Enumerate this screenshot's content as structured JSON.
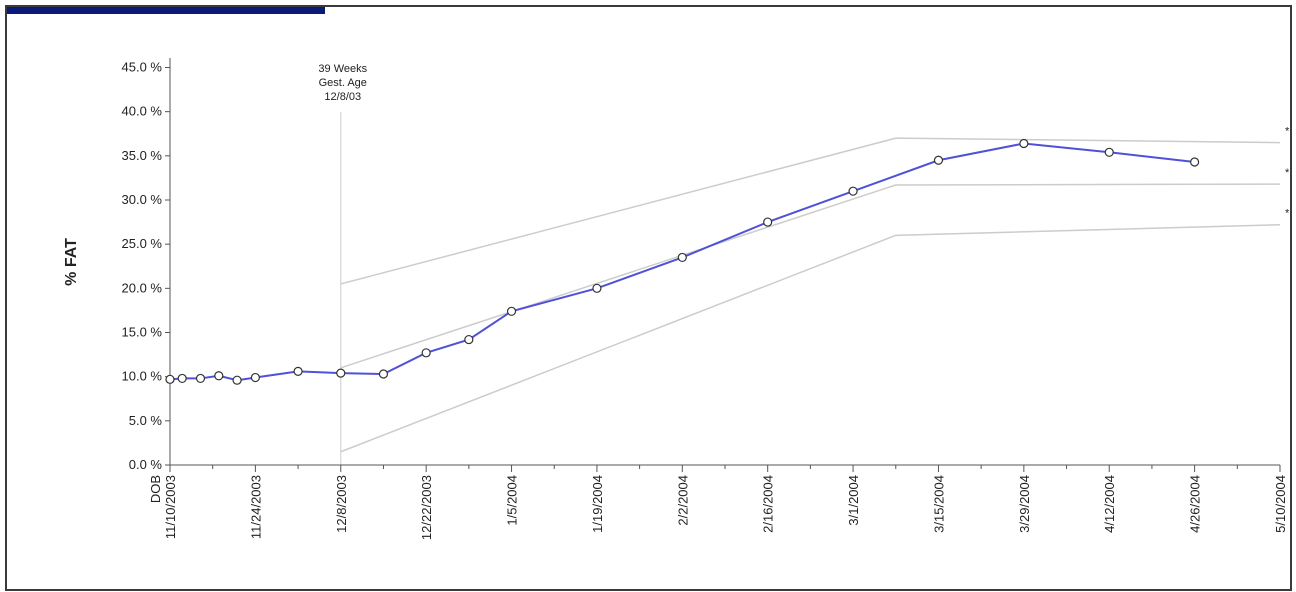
{
  "colors": {
    "header": "#0b1a78",
    "series": "#5050d8",
    "reference": "#cccccc",
    "axis": "#555555"
  },
  "chart_data": {
    "type": "line",
    "ylabel": "% FAT",
    "ylim": [
      0,
      46
    ],
    "y_ticks": [
      {
        "v": 0,
        "label": "0.0 %"
      },
      {
        "v": 5,
        "label": "5.0 %"
      },
      {
        "v": 10,
        "label": "10.0 %"
      },
      {
        "v": 15,
        "label": "15.0 %"
      },
      {
        "v": 20,
        "label": "20.0 %"
      },
      {
        "v": 25,
        "label": "25.0 %"
      },
      {
        "v": 30,
        "label": "30.0 %"
      },
      {
        "v": 35,
        "label": "35.0 %"
      },
      {
        "v": 40,
        "label": "40.0 %"
      },
      {
        "v": 45,
        "label": "45.0 %"
      }
    ],
    "x_ticks": [
      {
        "date": "2003-11-10",
        "label": "11/10/2003",
        "label2": "DOB"
      },
      {
        "date": "2003-11-24",
        "label": "11/24/2003"
      },
      {
        "date": "2003-12-08",
        "label": "12/8/2003"
      },
      {
        "date": "2003-12-22",
        "label": "12/22/2003"
      },
      {
        "date": "2004-01-05",
        "label": "1/5/2004"
      },
      {
        "date": "2004-01-19",
        "label": "1/19/2004"
      },
      {
        "date": "2004-02-02",
        "label": "2/2/2004"
      },
      {
        "date": "2004-02-16",
        "label": "2/16/2004"
      },
      {
        "date": "2004-03-01",
        "label": "3/1/2004"
      },
      {
        "date": "2004-03-15",
        "label": "3/15/2004"
      },
      {
        "date": "2004-03-29",
        "label": "3/29/2004"
      },
      {
        "date": "2004-04-12",
        "label": "4/12/2004"
      },
      {
        "date": "2004-04-26",
        "label": "4/26/2004"
      },
      {
        "date": "2004-05-10",
        "label": "5/10/2004"
      }
    ],
    "xlim": [
      "2003-11-10",
      "2004-05-10"
    ],
    "series": [
      {
        "points": [
          {
            "x": "2003-11-10",
            "y": 9.7
          },
          {
            "x": "2003-11-12",
            "y": 9.8
          },
          {
            "x": "2003-11-15",
            "y": 9.8
          },
          {
            "x": "2003-11-18",
            "y": 10.1
          },
          {
            "x": "2003-11-21",
            "y": 9.6
          },
          {
            "x": "2003-11-24",
            "y": 9.9
          },
          {
            "x": "2003-12-01",
            "y": 10.6
          },
          {
            "x": "2003-12-08",
            "y": 10.4
          },
          {
            "x": "2003-12-15",
            "y": 10.3
          },
          {
            "x": "2003-12-22",
            "y": 12.7
          },
          {
            "x": "2003-12-29",
            "y": 14.2
          },
          {
            "x": "2004-01-05",
            "y": 17.4
          },
          {
            "x": "2004-01-19",
            "y": 20.0
          },
          {
            "x": "2004-02-02",
            "y": 23.5
          },
          {
            "x": "2004-02-16",
            "y": 27.5
          },
          {
            "x": "2004-03-01",
            "y": 31.0
          },
          {
            "x": "2004-03-15",
            "y": 34.5
          },
          {
            "x": "2004-03-29",
            "y": 36.4
          },
          {
            "x": "2004-04-12",
            "y": 35.4
          },
          {
            "x": "2004-04-26",
            "y": 34.3
          }
        ]
      }
    ],
    "reference_curves": [
      {
        "label": "*",
        "points": [
          {
            "x": "2003-12-08",
            "y": 20.5
          },
          {
            "x": "2004-03-08",
            "y": 37.0
          },
          {
            "x": "2004-05-10",
            "y": 36.5
          }
        ]
      },
      {
        "label": "*",
        "points": [
          {
            "x": "2003-12-08",
            "y": 11.0
          },
          {
            "x": "2004-03-08",
            "y": 31.7
          },
          {
            "x": "2004-05-10",
            "y": 31.8
          }
        ]
      },
      {
        "label": "*",
        "points": [
          {
            "x": "2003-12-08",
            "y": 1.5
          },
          {
            "x": "2004-03-08",
            "y": 26.0
          },
          {
            "x": "2004-05-10",
            "y": 27.2
          }
        ]
      }
    ],
    "annotation": {
      "date": "2003-12-08",
      "lines": [
        "39 Weeks",
        "Gest. Age",
        "12/8/03"
      ]
    }
  }
}
